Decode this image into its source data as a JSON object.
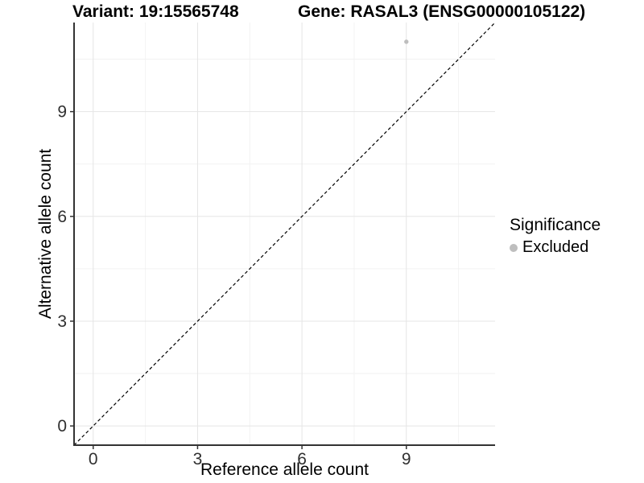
{
  "header": {
    "variant_title": "Variant: 19:15565748",
    "gene_title": "Gene: RASAL3 (ENSG00000105122)"
  },
  "legend": {
    "title": "Significance",
    "items": [
      {
        "label": "Excluded",
        "swatch_color": "#BEBEBE"
      }
    ]
  },
  "chart_data": {
    "type": "scatter",
    "titles": {
      "variant": "Variant: 19:15565748",
      "gene": "Gene: RASAL3 (ENSG00000105122)"
    },
    "xlabel": "Reference allele count",
    "ylabel": "Alternative allele count",
    "xlim": [
      -0.55,
      11.55
    ],
    "ylim": [
      -0.55,
      11.55
    ],
    "x_ticks": [
      0,
      3,
      6,
      9
    ],
    "y_ticks": [
      0,
      3,
      6,
      9
    ],
    "x_minor_ticks": [
      1.5,
      4.5,
      7.5,
      10.5
    ],
    "y_minor_ticks": [
      1.5,
      4.5,
      7.5,
      10.5
    ],
    "grid": "major+minor",
    "legend_position": "right",
    "reference_line": {
      "kind": "identity y=x",
      "style": "dashed",
      "color": "#000000"
    },
    "series": [
      {
        "name": "Excluded",
        "color": "#BEBEBE",
        "points": [
          {
            "x": 9,
            "y": 11
          }
        ]
      }
    ]
  },
  "colors": {
    "background": "#FFFFFF",
    "axis": "#333333",
    "grid_major": "#E5E5E5",
    "grid_minor": "#F2F2F2",
    "tick_text": "#303030"
  }
}
